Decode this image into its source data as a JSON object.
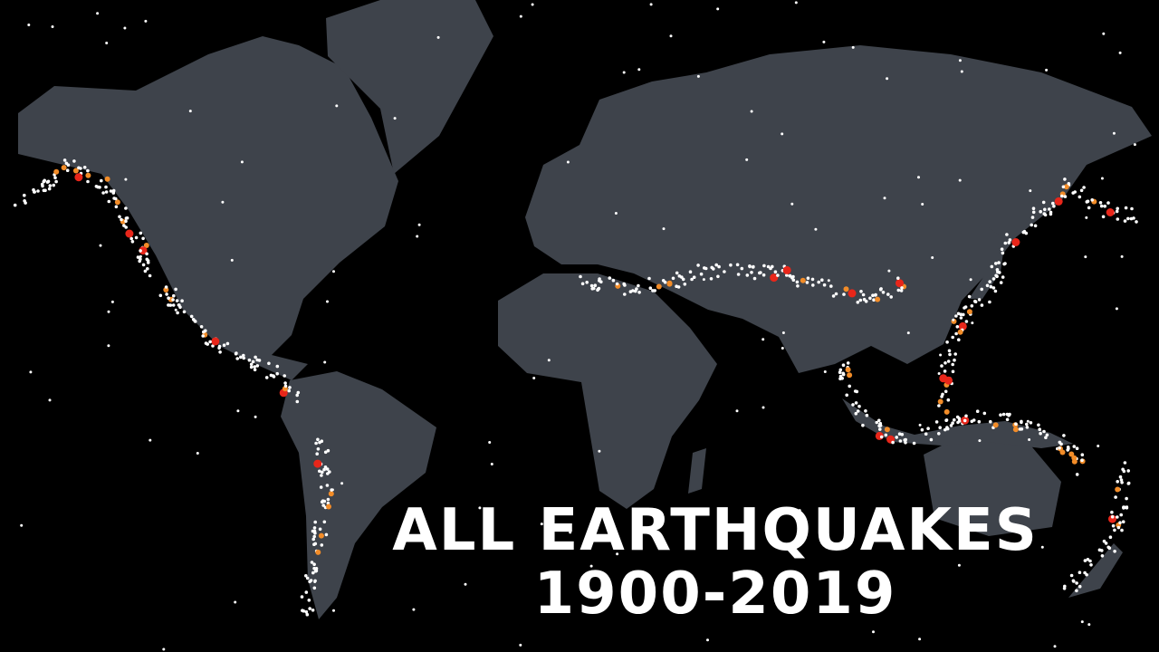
{
  "title": {
    "line1": "ALL EARTHQUAKES",
    "line2": "1900-2019"
  }
}
